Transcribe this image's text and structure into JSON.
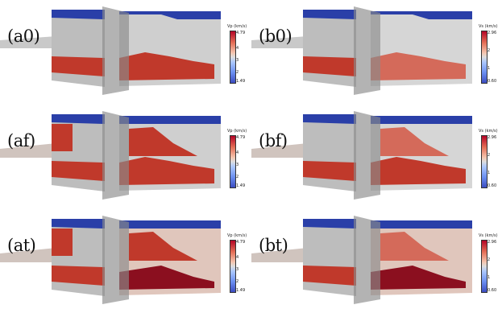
{
  "panels": [
    {
      "id": "a0",
      "label": "(a0)",
      "colorbar": {
        "title": "Vp (km/s)",
        "max": "4.79",
        "min": "1.49",
        "ticks": [
          "4",
          "3",
          "2"
        ]
      }
    },
    {
      "id": "b0",
      "label": "(b0)",
      "colorbar": {
        "title": "Vs (km/s)",
        "max": "2.96",
        "min": "0.60",
        "ticks": [
          "2",
          "1"
        ]
      }
    },
    {
      "id": "af",
      "label": "(af)",
      "colorbar": {
        "title": "Vp (km/s)",
        "max": "4.79",
        "min": "1.49",
        "ticks": [
          "4",
          "3",
          "2"
        ]
      }
    },
    {
      "id": "bf",
      "label": "(bf)",
      "colorbar": {
        "title": "Vs (km/s)",
        "max": "2.96",
        "min": "0.60",
        "ticks": [
          "2",
          "1"
        ]
      }
    },
    {
      "id": "at",
      "label": "(at)",
      "colorbar": {
        "title": "Vp (km/s)",
        "max": "4.79",
        "min": "1.49",
        "ticks": [
          "4",
          "3",
          "2"
        ]
      }
    },
    {
      "id": "bt",
      "label": "(bt)",
      "colorbar": {
        "title": "Vs (km/s)",
        "max": "2.96",
        "min": "0.60",
        "ticks": [
          "2",
          "1"
        ]
      }
    }
  ],
  "colors": {
    "high": "#b40426",
    "mid": "#dddddd",
    "low": "#3b4cc0"
  }
}
